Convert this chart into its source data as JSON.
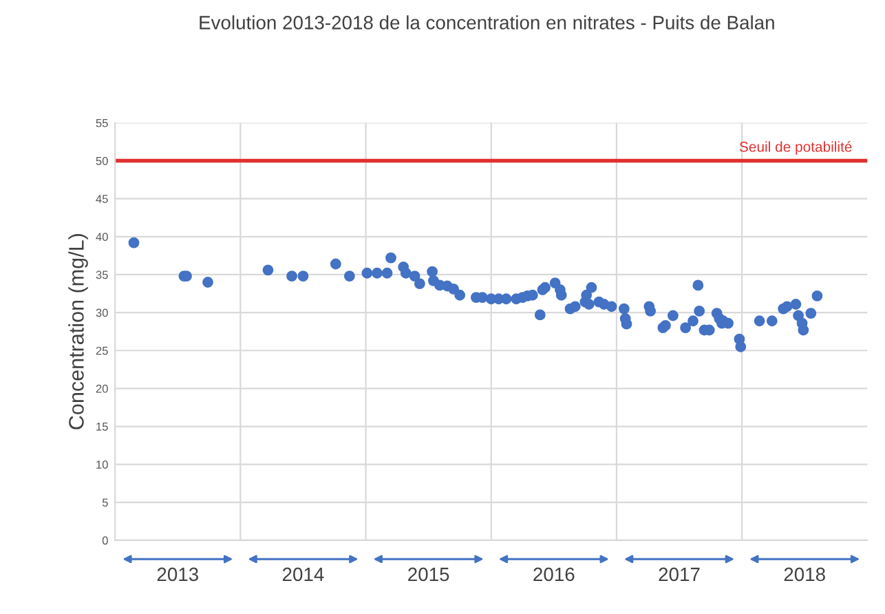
{
  "chart_data": {
    "type": "scatter",
    "title": "Evolution 2013-2018 de la concentration en nitrates - Puits de Balan",
    "ylabel": "Concentration (mg/L)",
    "x": [
      2013.15,
      2013.55,
      2013.57,
      2013.74,
      2014.22,
      2014.41,
      2014.5,
      2014.76,
      2014.87,
      2015.01,
      2015.09,
      2015.17,
      2015.2,
      2015.3,
      2015.32,
      2015.39,
      2015.43,
      2015.53,
      2015.54,
      2015.59,
      2015.65,
      2015.7,
      2015.75,
      2015.88,
      2015.93,
      2016.0,
      2016.06,
      2016.12,
      2016.2,
      2016.25,
      2016.29,
      2016.33,
      2016.39,
      2016.41,
      2016.43,
      2016.51,
      2016.55,
      2016.56,
      2016.63,
      2016.67,
      2016.75,
      2016.76,
      2016.78,
      2016.8,
      2016.86,
      2016.9,
      2016.96,
      2017.06,
      2017.07,
      2017.08,
      2017.26,
      2017.27,
      2017.37,
      2017.39,
      2017.45,
      2017.55,
      2017.61,
      2017.65,
      2017.66,
      2017.7,
      2017.74,
      2017.8,
      2017.82,
      2017.84,
      2017.85,
      2017.89,
      2017.98,
      2017.99,
      2018.14,
      2018.24,
      2018.33,
      2018.36,
      2018.43,
      2018.45,
      2018.48,
      2018.49,
      2018.55,
      2018.6
    ],
    "series": [
      {
        "color": "#4472c4",
        "values": [
          39.2,
          34.8,
          34.8,
          34.0,
          35.6,
          34.8,
          34.8,
          36.4,
          34.8,
          35.2,
          35.2,
          35.2,
          37.2,
          36.0,
          35.2,
          34.8,
          33.8,
          35.4,
          34.2,
          33.6,
          33.5,
          33.1,
          32.3,
          32.0,
          32.0,
          31.8,
          31.8,
          31.8,
          31.8,
          32.0,
          32.2,
          32.3,
          29.7,
          33.0,
          33.3,
          33.9,
          33.0,
          32.3,
          30.5,
          30.8,
          31.4,
          32.3,
          31.1,
          33.3,
          31.4,
          31.1,
          30.8,
          30.5,
          29.2,
          28.5,
          30.8,
          30.2,
          28.0,
          28.3,
          29.6,
          28.0,
          28.9,
          33.6,
          30.2,
          27.7,
          27.7,
          29.9,
          29.2,
          28.6,
          28.9,
          28.6,
          26.5,
          25.5,
          28.9,
          28.9,
          30.5,
          30.8,
          31.1,
          29.6,
          28.6,
          27.7,
          29.9,
          32.2
        ]
      }
    ],
    "xlim": [
      2013,
      2019
    ],
    "xticks": [
      {
        "value": 2013.5,
        "label": "2013"
      },
      {
        "value": 2014,
        "label": null
      },
      {
        "value": 2014.5,
        "label": "2014"
      },
      {
        "value": 2015,
        "label": null
      },
      {
        "value": 2015.5,
        "label": "2015"
      },
      {
        "value": 2016,
        "label": null
      },
      {
        "value": 2016.5,
        "label": "2016"
      },
      {
        "value": 2017,
        "label": null
      },
      {
        "value": 2017.5,
        "label": "2017"
      },
      {
        "value": 2018,
        "label": null
      },
      {
        "value": 2018.5,
        "label": "2018"
      }
    ],
    "ylim": [
      0,
      55
    ],
    "yticks": [
      0,
      5,
      10,
      15,
      20,
      25,
      30,
      35,
      40,
      45,
      50,
      55
    ],
    "grid": true,
    "marker": "circle",
    "ref_lines": [
      {
        "axis": "y",
        "value": 50,
        "label": "Seuil de potabilité",
        "color": "#e03030"
      }
    ]
  }
}
